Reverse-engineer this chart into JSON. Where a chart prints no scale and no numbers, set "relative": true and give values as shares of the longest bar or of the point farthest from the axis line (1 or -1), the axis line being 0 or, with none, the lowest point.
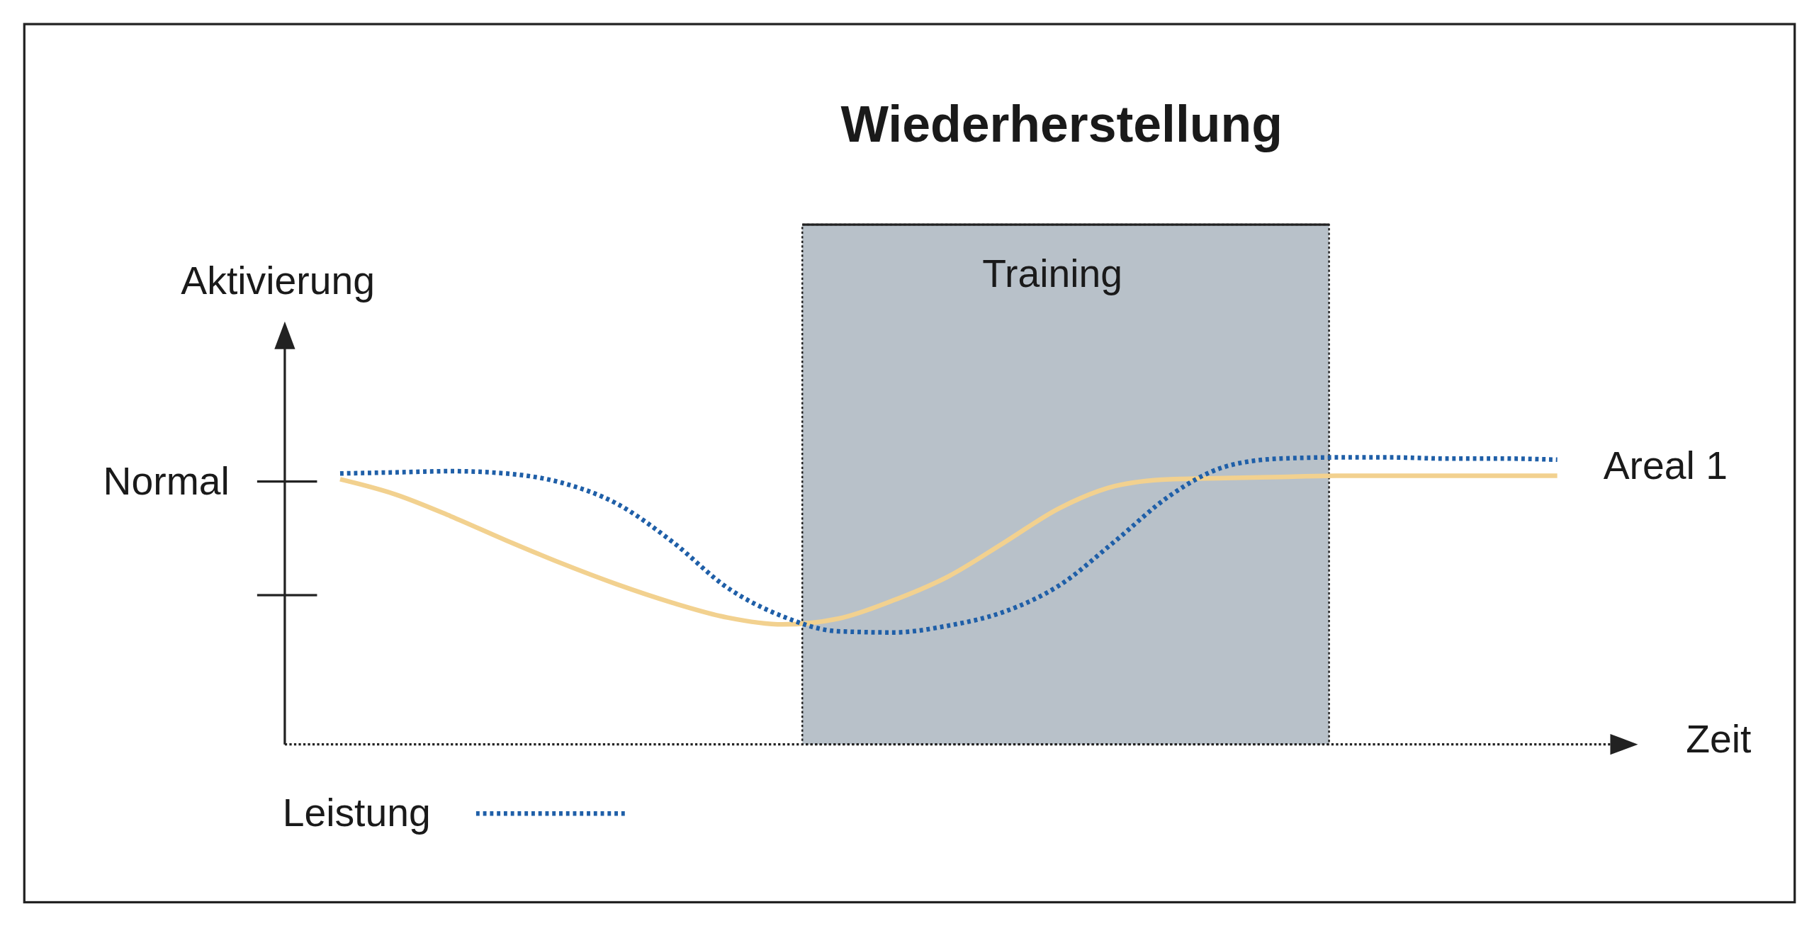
{
  "chart_data": {
    "type": "line",
    "title": "Wiederherstellung",
    "xlabel": "Zeit",
    "ylabel": "Aktivierung",
    "relative": true,
    "legend": "bottom left",
    "categories": [
      null,
      null,
      null,
      null,
      null,
      null,
      null,
      null,
      null,
      null,
      null,
      null,
      null,
      null,
      null,
      null,
      null,
      null,
      null,
      null,
      null,
      null,
      null
    ],
    "series": [
      {
        "name": "Areal 1",
        "color": "#f2d18f",
        "line_style": "solid",
        "values": [
          0.924,
          0.871,
          0.795,
          0.711,
          0.631,
          0.558,
          0.494,
          0.442,
          0.418,
          0.438,
          0.502,
          0.586,
          0.703,
          0.823,
          0.9,
          0.924,
          0.928,
          0.932,
          0.936,
          0.936,
          0.936,
          0.936,
          0.936
        ]
      },
      {
        "name": "Leistung",
        "color": "#1f5fa8",
        "line_style": "dotted",
        "values": [
          0.944,
          0.948,
          0.952,
          0.944,
          0.912,
          0.839,
          0.707,
          0.546,
          0.446,
          0.394,
          0.39,
          0.414,
          0.462,
          0.554,
          0.707,
          0.867,
          0.968,
          0.996,
          1,
          1,
          0.996,
          0.996,
          0.992
        ]
      }
    ],
    "annotations": [
      "Normal",
      "Training"
    ]
  }
}
